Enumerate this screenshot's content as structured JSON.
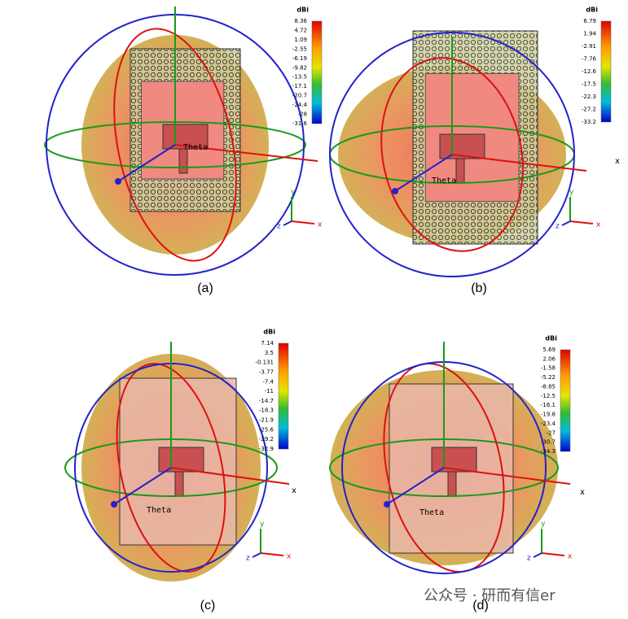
{
  "panels": [
    {
      "caption": "(a)",
      "colorbar": {
        "unit": "dBi",
        "ticks": [
          "8.36",
          "4.72",
          "1.09",
          "-2.55",
          "-6.19",
          "-9.82",
          "-13.5",
          "-17.1",
          "-20.7",
          "-24.4",
          "-28",
          "-31.6"
        ]
      },
      "axes": {
        "x": "x",
        "y": "y",
        "z": "z"
      },
      "theta": "Theta"
    },
    {
      "caption": "(b)",
      "colorbar": {
        "unit": "dBi",
        "ticks": [
          "6.79",
          "1.94",
          "-2.91",
          "-7.76",
          "-12.6",
          "-17.5",
          "-22.3",
          "-27.2",
          "-33.2"
        ]
      },
      "axes": {
        "x": "x",
        "y": "y",
        "z": "z"
      },
      "theta": "Theta"
    },
    {
      "caption": "(c)",
      "colorbar": {
        "unit": "dBi",
        "ticks": [
          "7.14",
          "3.5",
          "-0.131",
          "-3.77",
          "-7.4",
          "-11",
          "-14.7",
          "-18.3",
          "-21.9",
          "-25.6",
          "-29.2",
          "-32.9"
        ]
      },
      "axes": {
        "x": "x",
        "y": "y",
        "z": "z"
      },
      "theta": "Theta"
    },
    {
      "caption": "(d)",
      "colorbar": {
        "unit": "dBi",
        "ticks": [
          "5.69",
          "2.06",
          "-1.58",
          "-5.22",
          "-8.85",
          "-12.5",
          "-16.1",
          "-19.8",
          "-23.4",
          "-27",
          "-30.7",
          "-34.3"
        ]
      },
      "axes": {
        "x": "x",
        "y": "y",
        "z": "z"
      },
      "theta": "Theta"
    }
  ],
  "watermark": "公众号 · 研而有信er"
}
